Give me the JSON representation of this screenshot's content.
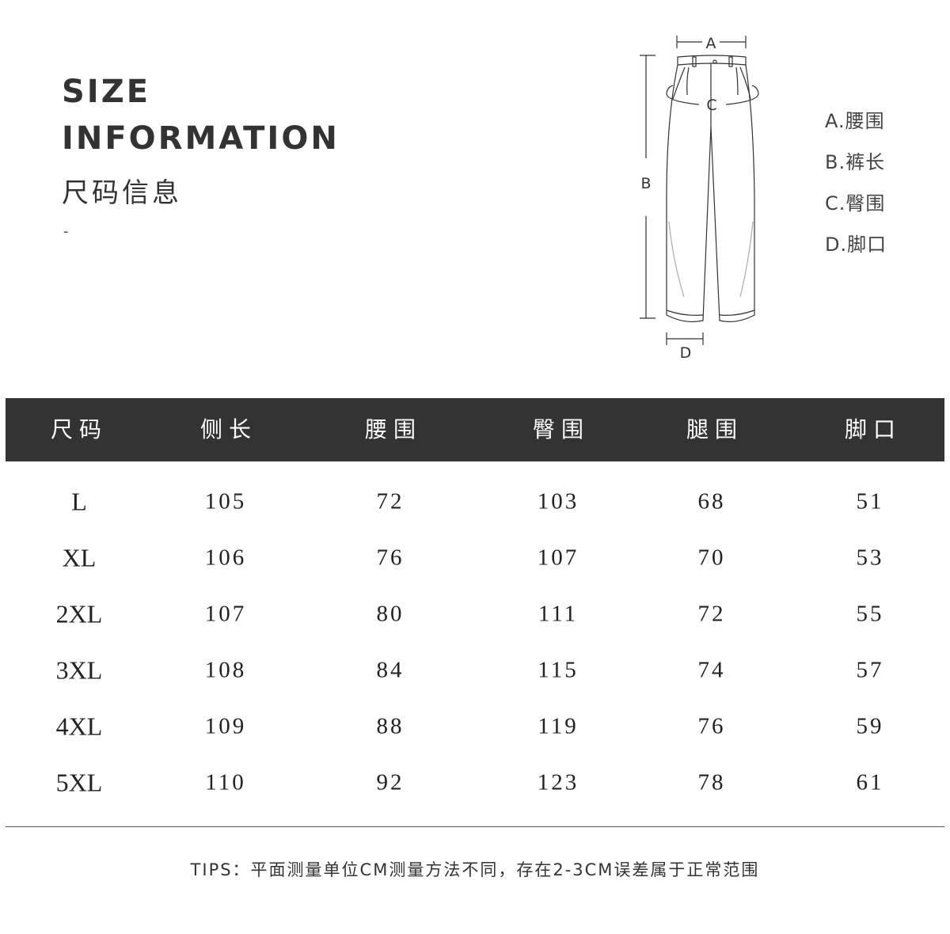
{
  "heading": {
    "line1": "SIZE",
    "line2": "INFORMATION",
    "cn": "尺码信息",
    "dash": "-"
  },
  "diagram": {
    "labels": {
      "a": "A",
      "b": "B",
      "c": "C",
      "d": "D"
    },
    "icon": "pants-measurement-diagram"
  },
  "legend": [
    "A.腰围",
    "B.裤长",
    "C.臀围",
    "D.脚口"
  ],
  "table": {
    "headers": [
      "尺码",
      "侧长",
      "腰围",
      "臀围",
      "腿围",
      "脚口"
    ],
    "rows": [
      [
        "L",
        "105",
        "72",
        "103",
        "68",
        "51"
      ],
      [
        "XL",
        "106",
        "76",
        "107",
        "70",
        "53"
      ],
      [
        "2XL",
        "107",
        "80",
        "111",
        "72",
        "55"
      ],
      [
        "3XL",
        "108",
        "84",
        "115",
        "74",
        "57"
      ],
      [
        "4XL",
        "109",
        "88",
        "119",
        "76",
        "59"
      ],
      [
        "5XL",
        "110",
        "92",
        "123",
        "78",
        "61"
      ]
    ],
    "header_bg": "#333333"
  },
  "tips": "TIPS：平面测量单位CM测量方法不同，存在2-3CM误差属于正常范围"
}
